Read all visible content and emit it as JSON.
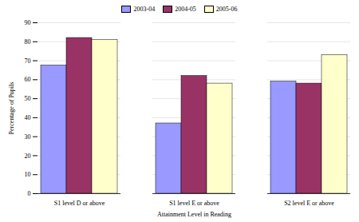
{
  "chart_data": {
    "type": "bar",
    "categories": [
      "S1 level D or above",
      "S1 level E or above",
      "S2 level E or above"
    ],
    "series": [
      {
        "name": "2003-04",
        "color": "#9999ff",
        "values": [
          67.5,
          37,
          59
        ]
      },
      {
        "name": "2004-05",
        "color": "#993366",
        "values": [
          82,
          62,
          58
        ]
      },
      {
        "name": "2005-06",
        "color": "#ffffcc",
        "values": [
          81,
          58,
          73
        ]
      }
    ],
    "xlabel": "Attainment Level in Reading",
    "ylabel": "Percentage of Pupils",
    "ylim": [
      0,
      90
    ],
    "yticks": [
      0,
      10,
      20,
      30,
      40,
      50,
      60,
      70,
      80,
      90
    ],
    "grid": true,
    "legend": "top"
  }
}
